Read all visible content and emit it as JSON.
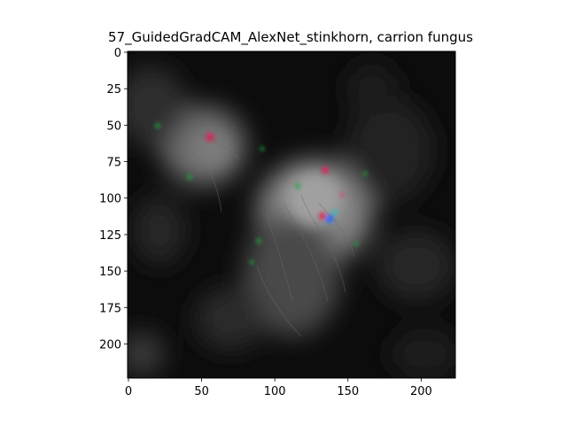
{
  "figure": {
    "title": "57_GuidedGradCAM_AlexNet_stinkhorn, carrion fungus"
  },
  "image": {
    "description_icon": "saliency-heatmap-image",
    "extent": {
      "x": [
        0,
        224
      ],
      "y": [
        224,
        0
      ]
    }
  },
  "axes": {
    "x": {
      "ticks": [
        0,
        50,
        100,
        150,
        200
      ]
    },
    "y": {
      "ticks": [
        0,
        25,
        50,
        75,
        100,
        125,
        150,
        175,
        200
      ]
    }
  },
  "colors": {
    "background_dark": "#0c0c0c",
    "blob_glow": "#8a8a8a",
    "accent_red": "#e0205a",
    "accent_blue": "#2a6aff",
    "accent_green": "#20a040"
  }
}
